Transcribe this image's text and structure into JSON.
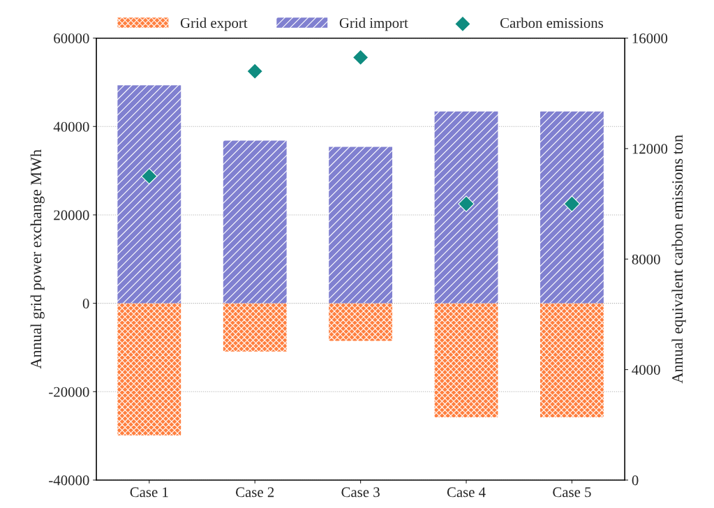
{
  "chart_data": {
    "type": "bar",
    "categories": [
      "Case 1",
      "Case 2",
      "Case 3",
      "Case 4",
      "Case 5"
    ],
    "ylabel": "Annual grid power exchange MWh",
    "y2label": "Annual equivalent carbon emissions ton",
    "stacked": true,
    "grid": "y",
    "legend": "top",
    "series": [
      {
        "name": "Grid export",
        "color": "#ff8040",
        "values": [
          -29900,
          -10900,
          -8500,
          -25800,
          -25800
        ]
      },
      {
        "name": "Grid import",
        "color": "#8080d0",
        "values": [
          49300,
          36800,
          35400,
          43400,
          43400
        ]
      },
      {
        "name": "Carbon emissions",
        "type": "scatter",
        "axis": "y2",
        "marker": "diamond",
        "color": "#0f8c80",
        "values": [
          11000,
          14800,
          15300,
          10000,
          10000
        ]
      }
    ],
    "ylim": [
      -40000,
      60000
    ],
    "yticks": [
      -40000,
      -20000,
      0,
      20000,
      40000,
      60000
    ],
    "y2lim": [
      0,
      16000
    ],
    "y2ticks": [
      0,
      4000,
      8000,
      12000,
      16000
    ]
  }
}
